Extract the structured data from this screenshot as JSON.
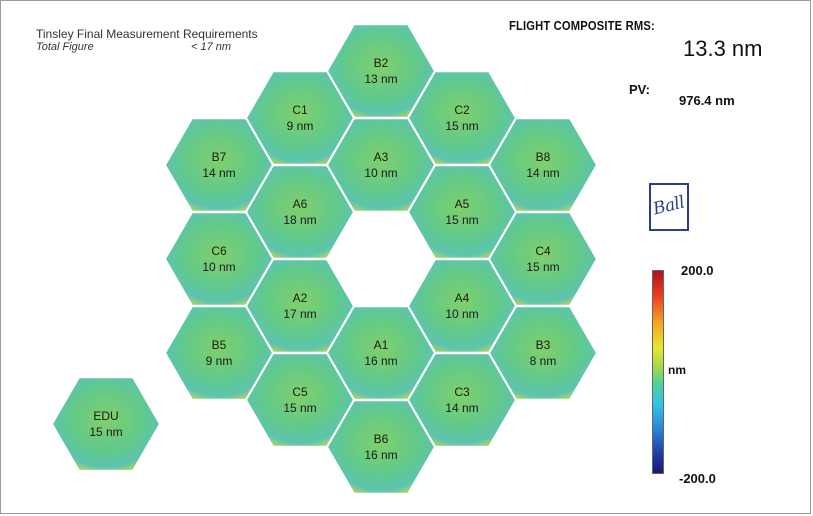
{
  "requirements": {
    "title": "Tinsley Final Measurement Requirements",
    "label": "Total Figure",
    "value": "< 17 nm"
  },
  "rms": {
    "label": "FLIGHT COMPOSITE RMS:",
    "value": "13.3 nm"
  },
  "pv": {
    "label": "PV:",
    "value": "976.4  nm"
  },
  "logo": {
    "text": "Ball",
    "color": "#2b3e8f"
  },
  "colorbar": {
    "max": "200.0",
    "unit": "nm",
    "min": "-200.0"
  },
  "segments": [
    {
      "name": "B2",
      "value": "13 nm"
    },
    {
      "name": "C1",
      "value": "9 nm"
    },
    {
      "name": "C2",
      "value": "15 nm"
    },
    {
      "name": "B7",
      "value": "14 nm"
    },
    {
      "name": "A3",
      "value": "10 nm"
    },
    {
      "name": "B8",
      "value": "14 nm"
    },
    {
      "name": "A6",
      "value": "18 nm"
    },
    {
      "name": "A5",
      "value": "15 nm"
    },
    {
      "name": "C6",
      "value": "10 nm"
    },
    {
      "name": "C4",
      "value": "15 nm"
    },
    {
      "name": "A2",
      "value": "17 nm"
    },
    {
      "name": "A4",
      "value": "10 nm"
    },
    {
      "name": "B5",
      "value": "9 nm"
    },
    {
      "name": "A1",
      "value": "16 nm"
    },
    {
      "name": "B3",
      "value": "8 nm"
    },
    {
      "name": "C5",
      "value": "15 nm"
    },
    {
      "name": "C3",
      "value": "14 nm"
    },
    {
      "name": "B6",
      "value": "16 nm"
    },
    {
      "name": "EDU",
      "value": "15 nm"
    }
  ]
}
